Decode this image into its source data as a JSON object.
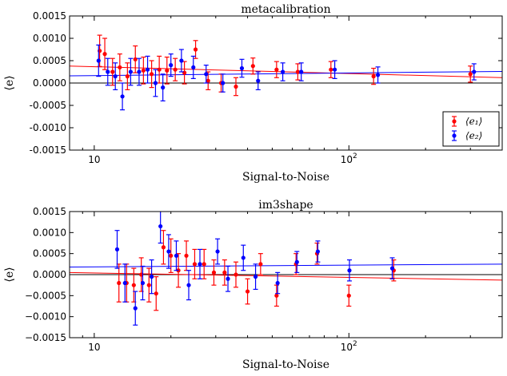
{
  "colors": {
    "e1": "#ff0000",
    "e2": "#0000ff",
    "zero": "#000000"
  },
  "chart_data": [
    {
      "type": "scatter",
      "title": "metacalibration",
      "xlabel": "Signal-to-Noise",
      "ylabel": "⟨e⟩",
      "xscale": "log",
      "xlim": [
        8.0,
        400
      ],
      "ylim": [
        -0.0015,
        0.0015
      ],
      "x_ticks": [
        {
          "value": 10,
          "label": "10"
        },
        {
          "value": 100,
          "label": "10²"
        }
      ],
      "y_ticks": [
        "0.0015",
        "0.0010",
        "0.0005",
        "0.0000",
        "-0.0005",
        "-0.0010",
        "-0.0015"
      ],
      "legend_position": "lower right",
      "legend": [
        "⟨e₁⟩",
        "⟨e₂⟩"
      ],
      "series": [
        {
          "name": "⟨e₁⟩",
          "color": "#ff0000",
          "points": [
            [
              10.5,
              0.00072,
              0.00035
            ],
            [
              11.0,
              0.00065,
              0.00035
            ],
            [
              11.8,
              0.00025,
              0.0003
            ],
            [
              12.6,
              0.00035,
              0.0003
            ],
            [
              13.5,
              0.00015,
              0.0003
            ],
            [
              14.5,
              0.00053,
              0.0003
            ],
            [
              15.6,
              0.00028,
              0.0003
            ],
            [
              16.8,
              0.0002,
              0.0003
            ],
            [
              18.0,
              0.0003,
              0.0003
            ],
            [
              19.3,
              0.00028,
              0.0003
            ],
            [
              20.8,
              0.0003,
              0.00025
            ],
            [
              22.6,
              0.00023,
              0.00025
            ],
            [
              25.0,
              0.00075,
              0.0002
            ],
            [
              28.0,
              5e-05,
              0.0002
            ],
            [
              31.5,
              0.0,
              0.0002
            ],
            [
              36.0,
              -8e-05,
              0.0002
            ],
            [
              42.0,
              0.00038,
              0.00018
            ],
            [
              52.0,
              0.0003,
              0.00018
            ],
            [
              63.0,
              0.00025,
              0.00018
            ],
            [
              85.0,
              0.0003,
              0.00018
            ],
            [
              125.0,
              0.00015,
              0.00018
            ],
            [
              300.0,
              0.0002,
              0.00018
            ]
          ],
          "fit": [
            [
              8.0,
              0.00038
            ],
            [
              400,
              0.00012
            ]
          ]
        },
        {
          "name": "⟨e₂⟩",
          "color": "#0000ff",
          "points": [
            [
              10.4,
              0.0005,
              0.00035
            ],
            [
              11.3,
              0.00025,
              0.0003
            ],
            [
              12.1,
              0.00015,
              0.0003
            ],
            [
              12.9,
              -0.0003,
              0.0003
            ],
            [
              13.9,
              0.00025,
              0.0003
            ],
            [
              15.0,
              0.00025,
              0.0003
            ],
            [
              16.2,
              0.0003,
              0.0003
            ],
            [
              17.4,
              0.0,
              0.0003
            ],
            [
              18.6,
              -0.0001,
              0.0003
            ],
            [
              20.0,
              0.0004,
              0.00025
            ],
            [
              22.0,
              0.0005,
              0.00025
            ],
            [
              24.5,
              0.00035,
              0.00025
            ],
            [
              27.5,
              0.0002,
              0.0002
            ],
            [
              32.0,
              0.0,
              0.0002
            ],
            [
              38.0,
              0.00033,
              0.0002
            ],
            [
              44.0,
              5e-05,
              0.0002
            ],
            [
              55.0,
              0.00025,
              0.0002
            ],
            [
              65.0,
              0.00025,
              0.0002
            ],
            [
              88.0,
              0.0003,
              0.0002
            ],
            [
              130.0,
              0.00018,
              0.00018
            ],
            [
              310.0,
              0.00025,
              0.00018
            ]
          ],
          "fit": [
            [
              8.0,
              0.00016
            ],
            [
              400,
              0.00026
            ]
          ]
        }
      ]
    },
    {
      "type": "scatter",
      "title": "im3shape",
      "xlabel": "Signal-to-Noise",
      "ylabel": "⟨e⟩",
      "xscale": "log",
      "xlim": [
        8.0,
        400
      ],
      "ylim": [
        -0.0015,
        0.0015
      ],
      "x_ticks": [
        {
          "value": 10,
          "label": "10"
        },
        {
          "value": 100,
          "label": "10²"
        }
      ],
      "y_ticks": [
        "0.0015",
        "0.0010",
        "0.0005",
        "0.0000",
        "−0.0005",
        "−0.0010",
        "−0.0015"
      ],
      "series": [
        {
          "name": "⟨e₁⟩",
          "color": "#ff0000",
          "points": [
            [
              12.5,
              -0.0002,
              0.00045
            ],
            [
              13.4,
              -0.0002,
              0.00045
            ],
            [
              14.3,
              -0.00025,
              0.0004
            ],
            [
              15.3,
              0.0,
              0.0004
            ],
            [
              16.4,
              -0.00025,
              0.0004
            ],
            [
              17.5,
              -0.00045,
              0.0004
            ],
            [
              18.7,
              0.00065,
              0.0004
            ],
            [
              20.0,
              0.00045,
              0.0004
            ],
            [
              21.4,
              0.0001,
              0.0004
            ],
            [
              23.0,
              0.00045,
              0.00035
            ],
            [
              24.8,
              0.00025,
              0.00035
            ],
            [
              27.0,
              0.00025,
              0.00035
            ],
            [
              29.5,
              5e-05,
              0.0003
            ],
            [
              32.5,
              5e-05,
              0.0003
            ],
            [
              36.0,
              0.0,
              0.0003
            ],
            [
              40.0,
              -0.0004,
              0.0003
            ],
            [
              45.0,
              0.00025,
              0.00025
            ],
            [
              52.0,
              -0.0005,
              0.00025
            ],
            [
              62.0,
              0.00025,
              0.00025
            ],
            [
              75.0,
              0.0005,
              0.00025
            ],
            [
              100.0,
              -0.0005,
              0.00025
            ],
            [
              150.0,
              0.0001,
              0.00025
            ]
          ],
          "fit": [
            [
              8.0,
              5e-05
            ],
            [
              400,
              -0.00013
            ]
          ]
        },
        {
          "name": "⟨e₂⟩",
          "color": "#0000ff",
          "points": [
            [
              12.3,
              0.0006,
              0.00045
            ],
            [
              13.2,
              -0.0002,
              0.00045
            ],
            [
              14.5,
              -0.0008,
              0.0004
            ],
            [
              15.5,
              -0.0002,
              0.0004
            ],
            [
              16.8,
              -5e-05,
              0.0004
            ],
            [
              18.2,
              0.00115,
              0.0004
            ],
            [
              19.6,
              0.00055,
              0.0004
            ],
            [
              21.0,
              0.00045,
              0.00035
            ],
            [
              23.5,
              -0.00025,
              0.00035
            ],
            [
              26.0,
              0.00025,
              0.00035
            ],
            [
              30.5,
              0.00055,
              0.0003
            ],
            [
              33.5,
              -0.0001,
              0.0003
            ],
            [
              38.5,
              0.0004,
              0.0003
            ],
            [
              43.0,
              -5e-05,
              0.0003
            ],
            [
              52.5,
              -0.0002,
              0.00025
            ],
            [
              62.5,
              0.0003,
              0.00025
            ],
            [
              75.5,
              0.00055,
              0.00025
            ],
            [
              100.5,
              0.0001,
              0.00025
            ],
            [
              148.0,
              0.00015,
              0.00025
            ]
          ],
          "fit": [
            [
              8.0,
              0.00018
            ],
            [
              400,
              0.00025
            ]
          ]
        }
      ]
    }
  ]
}
